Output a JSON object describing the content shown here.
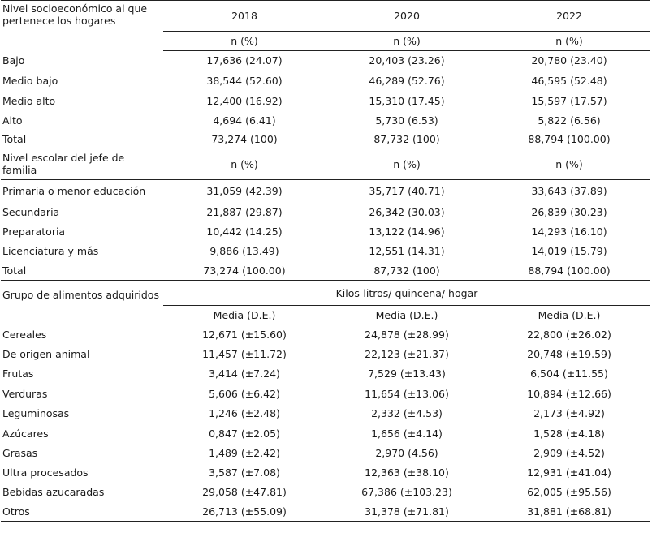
{
  "years": [
    "2018",
    "2020",
    "2022"
  ],
  "s1": {
    "header": "Nivel socioeconómico al que pertenece los hogares",
    "unit": "n (%)",
    "rows": [
      {
        "label": "Bajo",
        "v": [
          "17,636 (24.07)",
          "20,403 (23.26)",
          "20,780 (23.40)"
        ]
      },
      {
        "label": "Medio bajo",
        "v": [
          "38,544 (52.60)",
          "46,289 (52.76)",
          "46,595 (52.48)"
        ]
      },
      {
        "label": "Medio alto",
        "v": [
          "12,400 (16.92)",
          "15,310 (17.45)",
          "15,597 (17.57)"
        ]
      },
      {
        "label": "Alto",
        "v": [
          "4,694 (6.41)",
          "5,730 (6.53)",
          "5,822 (6.56)"
        ]
      },
      {
        "label": "Total",
        "v": [
          "73,274 (100)",
          "87,732 (100)",
          "88,794 (100.00)"
        ]
      }
    ]
  },
  "s2": {
    "header": "Nivel escolar del jefe de familia",
    "unit": "n (%)",
    "rows": [
      {
        "label": "Primaria o menor educación",
        "v": [
          "31,059 (42.39)",
          "35,717 (40.71)",
          "33,643 (37.89)"
        ]
      },
      {
        "label": "Secundaria",
        "v": [
          "21,887 (29.87)",
          "26,342 (30.03)",
          "26,839 (30.23)"
        ]
      },
      {
        "label": "Preparatoria",
        "v": [
          "10,442 (14.25)",
          "13,122 (14.96)",
          "14,293 (16.10)"
        ]
      },
      {
        "label": "Licenciatura y más",
        "v": [
          "9,886 (13.49)",
          "12,551 (14.31)",
          "14,019 (15.79)"
        ]
      },
      {
        "label": "Total",
        "v": [
          "73,274 (100.00)",
          "87,732 (100)",
          "88,794 (100.00)"
        ]
      }
    ]
  },
  "s3": {
    "header": "Grupo de alimentos adquiridos",
    "span": "Kilos-litros/ quincena/ hogar",
    "unit": "Media (D.E.)",
    "rows": [
      {
        "label": "Cereales",
        "v": [
          "12,671 (±15.60)",
          "24,878 (±28.99)",
          "22,800 (±26.02)"
        ]
      },
      {
        "label": "De origen animal",
        "v": [
          "11,457 (±11.72)",
          "22,123 (±21.37)",
          "20,748 (±19.59)"
        ]
      },
      {
        "label": "Frutas",
        "v": [
          "3,414 (±7.24)",
          "7,529 (±13.43)",
          "6,504 (±11.55)"
        ]
      },
      {
        "label": "Verduras",
        "v": [
          "5,606 (±6.42)",
          "11,654 (±13.06)",
          "10,894 (±12.66)"
        ]
      },
      {
        "label": "Leguminosas",
        "v": [
          "1,246 (±2.48)",
          "2,332 (±4.53)",
          "2,173 (±4.92)"
        ]
      },
      {
        "label": "Azúcares",
        "v": [
          "0,847 (±2.05)",
          "1,656 (±4.14)",
          "1,528 (±4.18)"
        ]
      },
      {
        "label": "Grasas",
        "v": [
          "1,489 (±2.42)",
          "2,970 (4.56)",
          "2,909 (±4.52)"
        ]
      },
      {
        "label": "Ultra procesados",
        "v": [
          "3,587 (±7.08)",
          "12,363 (±38.10)",
          "12,931 (±41.04)"
        ]
      },
      {
        "label": "Bebidas azucaradas",
        "v": [
          "29,058 (±47.81)",
          "67,386 (±103.23)",
          "62,005 (±95.56)"
        ]
      },
      {
        "label": "Otros",
        "v": [
          "26,713 (±55.09)",
          "31,378 (±71.81)",
          "31,881 (±68.81)"
        ]
      }
    ]
  }
}
